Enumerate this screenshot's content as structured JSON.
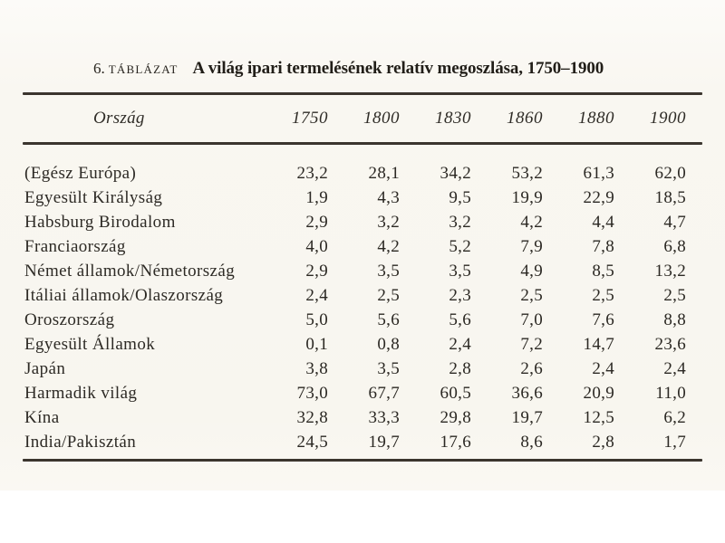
{
  "page": {
    "background_color": "#f8f6ef",
    "text_color": "#2d2a26",
    "rule_color": "#3b352e"
  },
  "table": {
    "index": "6.",
    "kind_label": "TÁBLÁZAT",
    "title": "A világ ipari termelésének relatív megoszlása, 1750–1900",
    "columns": {
      "country": "Ország",
      "years": [
        "1750",
        "1800",
        "1830",
        "1860",
        "1880",
        "1900"
      ]
    },
    "rows": [
      {
        "label": "(Egész Európa)",
        "values": [
          "23,2",
          "28,1",
          "34,2",
          "53,2",
          "61,3",
          "62,0"
        ]
      },
      {
        "label": "Egyesült Királyság",
        "values": [
          "1,9",
          "4,3",
          "9,5",
          "19,9",
          "22,9",
          "18,5"
        ]
      },
      {
        "label": "Habsburg Birodalom",
        "values": [
          "2,9",
          "3,2",
          "3,2",
          "4,2",
          "4,4",
          "4,7"
        ]
      },
      {
        "label": "Franciaország",
        "values": [
          "4,0",
          "4,2",
          "5,2",
          "7,9",
          "7,8",
          "6,8"
        ]
      },
      {
        "label": "Német államok/Németország",
        "values": [
          "2,9",
          "3,5",
          "3,5",
          "4,9",
          "8,5",
          "13,2"
        ]
      },
      {
        "label": "Itáliai államok/Olaszország",
        "values": [
          "2,4",
          "2,5",
          "2,3",
          "2,5",
          "2,5",
          "2,5"
        ]
      },
      {
        "label": "Oroszország",
        "values": [
          "5,0",
          "5,6",
          "5,6",
          "7,0",
          "7,6",
          "8,8"
        ]
      },
      {
        "label": "Egyesült Államok",
        "values": [
          "0,1",
          "0,8",
          "2,4",
          "7,2",
          "14,7",
          "23,6"
        ]
      },
      {
        "label": "Japán",
        "values": [
          "3,8",
          "3,5",
          "2,8",
          "2,6",
          "2,4",
          "2,4"
        ]
      },
      {
        "label": "Harmadik világ",
        "values": [
          "73,0",
          "67,7",
          "60,5",
          "36,6",
          "20,9",
          "11,0"
        ]
      },
      {
        "label": "Kína",
        "values": [
          "32,8",
          "33,3",
          "29,8",
          "19,7",
          "12,5",
          "6,2"
        ]
      },
      {
        "label": "India/Pakisztán",
        "values": [
          "24,5",
          "19,7",
          "17,6",
          "8,6",
          "2,8",
          "1,7"
        ]
      }
    ]
  }
}
